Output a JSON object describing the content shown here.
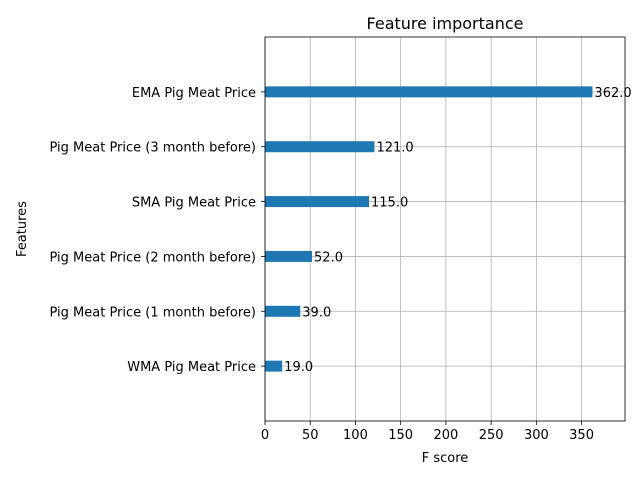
{
  "chart_data": {
    "type": "bar",
    "orientation": "horizontal",
    "title": "Feature importance",
    "xlabel": "F score",
    "ylabel": "Features",
    "categories": [
      "EMA Pig Meat Price",
      "Pig Meat Price (3 month before)",
      "SMA Pig Meat Price",
      "Pig Meat Price (2 month before)",
      "Pig Meat Price (1 month before)",
      "WMA Pig Meat Price"
    ],
    "values": [
      362,
      121,
      115,
      52,
      39,
      19
    ],
    "value_labels": [
      "362.0",
      "121.0",
      "115.0",
      "52.0",
      "39.0",
      "19.0"
    ],
    "xlim": [
      0,
      398
    ],
    "xticks": [
      0,
      50,
      100,
      150,
      200,
      250,
      300,
      350
    ],
    "grid": true,
    "bar_color": "#1f77b4",
    "grid_color": "#b0b0b0"
  }
}
